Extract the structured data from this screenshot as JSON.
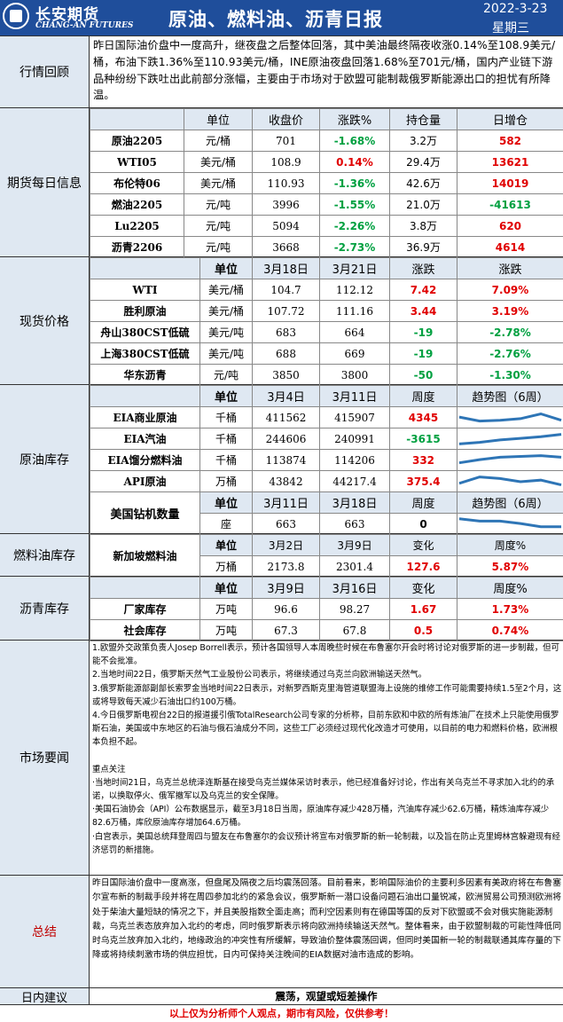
{
  "header": {
    "company_cn": "长安期货",
    "company_en": "CHANG-AN FUTURES",
    "title": "原油、燃料油、沥青日报",
    "date": "2022-3-23",
    "weekday": "星期三"
  },
  "review": {
    "label": "行情回顾",
    "text": "昨日国际油价盘中一度高升，继夜盘之后整体回落，其中美油最终隔夜收涨0.14%至108.9美元/桶，布油下跌1.36%至110.93美元/桶，INE原油夜盘回落1.68%至701元/桶，国内产业链下游品种纷纷下跌吐出此前部分涨幅，主要由于市场对于欧盟可能制裁俄罗斯能源出口的担忧有所降温。"
  },
  "futures": {
    "label": "期货每日信息",
    "headers": [
      "",
      "单位",
      "收盘价",
      "涨跌%",
      "持仓量",
      "日增仓"
    ],
    "rows": [
      {
        "name": "原油2205",
        "unit": "元/桶",
        "close": "701",
        "chg": "-1.68%",
        "chg_color": "green",
        "oi": "3.2万",
        "add": "582",
        "add_color": "red"
      },
      {
        "name": "WTI05",
        "unit": "美元/桶",
        "close": "108.9",
        "chg": "0.14%",
        "chg_color": "red",
        "oi": "29.4万",
        "add": "13621",
        "add_color": "red"
      },
      {
        "name": "布伦特06",
        "unit": "美元/桶",
        "close": "110.93",
        "chg": "-1.36%",
        "chg_color": "green",
        "oi": "42.6万",
        "add": "14019",
        "add_color": "red"
      },
      {
        "name": "燃油2205",
        "unit": "元/吨",
        "close": "3996",
        "chg": "-1.55%",
        "chg_color": "green",
        "oi": "21.0万",
        "add": "-41613",
        "add_color": "green"
      },
      {
        "name": "Lu2205",
        "unit": "元/吨",
        "close": "5094",
        "chg": "-2.26%",
        "chg_color": "green",
        "oi": "3.8万",
        "add": "620",
        "add_color": "red"
      },
      {
        "name": "沥青2206",
        "unit": "元/吨",
        "close": "3668",
        "chg": "-2.73%",
        "chg_color": "green",
        "oi": "36.9万",
        "add": "4614",
        "add_color": "red"
      }
    ]
  },
  "spot": {
    "label": "现货价格",
    "headers": [
      "",
      "单位",
      "3月18日",
      "3月21日",
      "涨跌",
      "涨跌"
    ],
    "rows": [
      {
        "name": "WTI",
        "unit": "美元/桶",
        "d1": "104.7",
        "d2": "112.12",
        "chg": "7.42",
        "pct": "7.09%",
        "color": "red"
      },
      {
        "name": "胜利原油",
        "unit": "美元/桶",
        "d1": "107.72",
        "d2": "111.16",
        "chg": "3.44",
        "pct": "3.19%",
        "color": "red"
      },
      {
        "name": "舟山380CST低硫",
        "unit": "美元/吨",
        "d1": "683",
        "d2": "664",
        "chg": "-19",
        "pct": "-2.78%",
        "color": "green"
      },
      {
        "name": "上海380CST低硫",
        "unit": "美元/吨",
        "d1": "688",
        "d2": "669",
        "chg": "-19",
        "pct": "-2.76%",
        "color": "green"
      },
      {
        "name": "华东沥青",
        "unit": "元/吨",
        "d1": "3850",
        "d2": "3800",
        "chg": "-50",
        "pct": "-1.30%",
        "color": "green"
      }
    ]
  },
  "crude_stock": {
    "label": "原油库存",
    "headers": [
      "",
      "单位",
      "3月4日",
      "3月11日",
      "周度",
      "趋势图（6周）"
    ],
    "rows": [
      {
        "name": "EIA商业原油",
        "unit": "千桶",
        "d1": "411562",
        "d2": "415907",
        "chg": "4345",
        "color": "red",
        "trend": [
          0.55,
          0.3,
          0.35,
          0.45,
          0.75,
          0.35
        ]
      },
      {
        "name": "EIA汽油",
        "unit": "千桶",
        "d1": "244606",
        "d2": "240991",
        "chg": "-3615",
        "color": "green",
        "trend": [
          0.2,
          0.3,
          0.45,
          0.55,
          0.65,
          0.8
        ]
      },
      {
        "name": "EIA馏分燃料油",
        "unit": "千桶",
        "d1": "113874",
        "d2": "114206",
        "chg": "332",
        "color": "red",
        "trend": [
          0.35,
          0.55,
          0.7,
          0.75,
          0.8,
          0.7
        ]
      },
      {
        "name": "API原油",
        "unit": "万桶",
        "d1": "43842",
        "d2": "44217.4",
        "chg": "375.4",
        "color": "red",
        "trend": [
          0.4,
          0.8,
          0.7,
          0.5,
          0.6,
          0.3
        ]
      }
    ],
    "rig_headers": [
      "单位",
      "3月11日",
      "3月18日",
      "周度",
      "趋势图（6周）"
    ],
    "rig": {
      "name": "美国钻机数量",
      "unit": "座",
      "d1": "663",
      "d2": "663",
      "chg": "0",
      "trend": [
        0.85,
        0.7,
        0.7,
        0.55,
        0.35,
        0.35
      ]
    }
  },
  "fuel_stock": {
    "label": "燃料油库存",
    "headers": [
      "单位",
      "3月2日",
      "3月9日",
      "变化",
      "周度%"
    ],
    "row": {
      "name": "新加坡燃料油",
      "unit": "万桶",
      "d1": "2173.8",
      "d2": "2301.4",
      "chg": "127.6",
      "pct": "5.87%"
    }
  },
  "asphalt_stock": {
    "label": "沥青库存",
    "headers": [
      "",
      "单位",
      "3月9日",
      "3月16日",
      "变化",
      "周度%"
    ],
    "rows": [
      {
        "name": "厂家库存",
        "unit": "万吨",
        "d1": "96.6",
        "d2": "98.27",
        "chg": "1.67",
        "pct": "1.73%"
      },
      {
        "name": "社会库存",
        "unit": "万吨",
        "d1": "67.3",
        "d2": "67.8",
        "chg": "0.5",
        "pct": "0.74%"
      }
    ]
  },
  "news": {
    "label": "市场要闻",
    "items": [
      "1.欧盟外交政策负责人Josep Borrell表示，预计各国领导人本周晚些时候在布鲁塞尔开会时将讨论对俄罗斯的进一步制裁，但可能不会批准。",
      "2.当地时间22日，俄罗斯天然气工业股份公司表示，将继续通过乌克兰向欧洲输送天然气。",
      "3.俄罗斯能源部副部长索罗金当地时间22日表示，对新罗西斯克里海管道联盟海上设施的维修工作可能需要持续1.5至2个月，这或将导致每天减少石油出口约100万桶。",
      "4.今日俄罗斯电视台22日的报道援引俄TotalResearch公司专家的分析称，目前东欧和中欧的所有炼油厂在技术上只能使用俄罗斯石油，美国或中东地区的石油与俄石油成分不同，这些工厂必须经过现代化改造才可使用，以目前的电力和燃料价格，欧洲根本负担不起。",
      "",
      "重点关注",
      "·当地时间21日，乌克兰总统泽连斯基在接受乌克兰媒体采访时表示，他已经准备好讨论，作出有关乌克兰不寻求加入北约的承诺，以换取停火、俄军撤军以及乌克兰的安全保障。",
      "·美国石油协会（API）公布数据显示，截至3月18日当周，原油库存减少428万桶，汽油库存减少62.6万桶，精炼油库存减少82.6万桶，库欣原油库存增加64.6万桶。",
      "·白宫表示，美国总统拜登周四与盟友在布鲁塞尔的会议预计将宣布对俄罗斯的新一轮制裁，以及旨在防止克里姆林宫躲避现有经济惩罚的新措施。"
    ]
  },
  "summary": {
    "label": "总结",
    "text": "昨日国际油价盘中一度高涨，但盘尾及隔夜之后均震荡回落。目前看来，影响国际油价的主要利多因素有美政府将在布鲁塞尔宣布新的制裁手段并将在周四参加北约的紧急会议，俄罗斯新一潜口设备问题石油出口量锐减，欧洲贸易公司预测欧洲将处于柴油大量短缺的情况之下，并且美股指数全面走高；而利空因素则有在德国等国的反对下欧盟或不会对俄实施能源制裁，乌克兰表态放弃加入北约的考虑，同时俄罗斯表示将向欧洲持续输送天然气。整体看来，由于欧盟制裁的可能性降低同时乌克兰放弃加入北约，地缘政治的冲突性有所缓解，导致油价整体震荡回调，但同时美国新一轮的制裁联通其库存量的下降或将持续刺激市场的供应担忧，日内可保持关注晚间的EIA数据对油市造成的影响。"
  },
  "advice": {
    "label": "日内建议",
    "text": "震荡，观望或短差操作"
  },
  "footer": "以上仅为分析师个人观点，期市有风险，仅供参考！",
  "colors": {
    "brand": "#1f4e9b",
    "label_bg": "#dfe8f2",
    "up": "#e00000",
    "down": "#00a040",
    "trend_line": "#2e75b6"
  }
}
